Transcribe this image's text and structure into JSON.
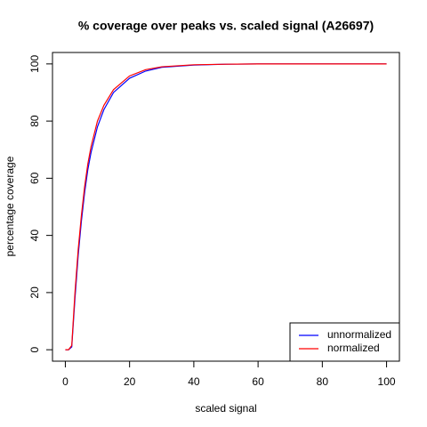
{
  "chart_data": {
    "type": "line",
    "title": "% coverage over peaks vs. scaled signal (A26697)",
    "xlabel": "scaled signal",
    "ylabel": "percentage coverage",
    "x": [
      0,
      1,
      2,
      3,
      4,
      5,
      6,
      7,
      8,
      10,
      12,
      15,
      20,
      25,
      30,
      40,
      50,
      60,
      80,
      100
    ],
    "series": [
      {
        "name": "unnormalized",
        "color": "#0000ff",
        "values": [
          0,
          0,
          1,
          18,
          33,
          45,
          55,
          63,
          69,
          78,
          84,
          90,
          95,
          97.5,
          98.8,
          99.6,
          99.9,
          100,
          100,
          100
        ]
      },
      {
        "name": "normalized",
        "color": "#ff0000",
        "values": [
          0,
          0,
          1.5,
          20,
          35,
          47,
          57,
          65,
          71,
          80,
          85.5,
          91,
          95.8,
          98,
          99,
          99.7,
          99.9,
          100,
          100,
          100
        ]
      }
    ],
    "xlim": [
      -4,
      104
    ],
    "ylim": [
      -4,
      104
    ],
    "xticks": [
      0,
      20,
      40,
      60,
      80,
      100
    ],
    "yticks": [
      0,
      20,
      40,
      60,
      80,
      100
    ],
    "legend": "bottom-right"
  }
}
